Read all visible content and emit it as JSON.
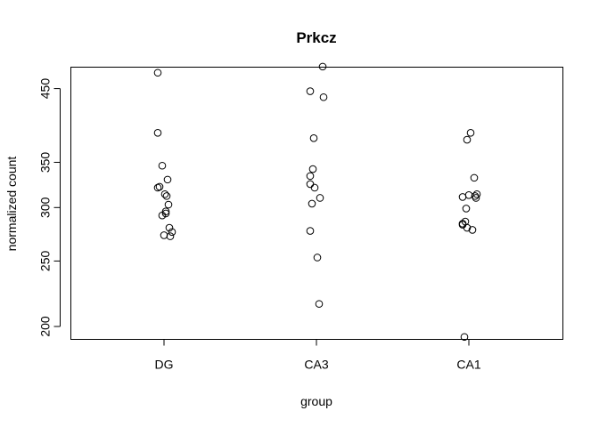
{
  "chart_data": {
    "type": "scatter",
    "title": "Prkcz",
    "xlabel": "group",
    "ylabel": "normalized count",
    "categories": [
      "DG",
      "CA3",
      "CA1"
    ],
    "y_ticks": [
      200,
      250,
      300,
      350,
      450
    ],
    "ylim": [
      191.4,
      484.1
    ],
    "log_y": true,
    "grid": false,
    "series": [
      {
        "values": [
          [
            475,
            387,
            346,
            330,
            322,
            321,
            314,
            312,
            303,
            296,
            294,
            292,
            280,
            276,
            273,
            272
          ],
          [
            485,
            446,
            437,
            380,
            342,
            334,
            325,
            321,
            310,
            304,
            277,
            253,
            216
          ],
          [
            387,
            378,
            332,
            314,
            313,
            312,
            311,
            310,
            299,
            286,
            284,
            283,
            280,
            278,
            193
          ]
        ]
      }
    ]
  }
}
